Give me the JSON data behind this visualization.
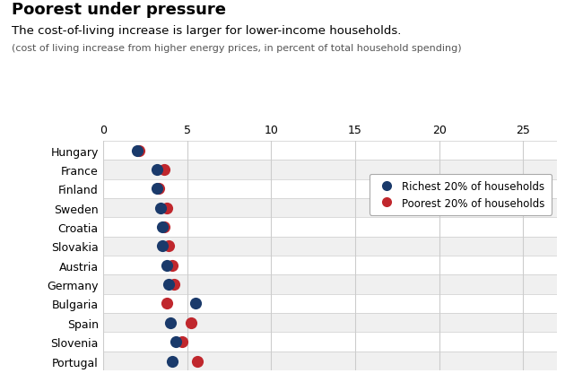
{
  "title": "Poorest under pressure",
  "subtitle": "The cost-of-living increase is larger for lower-income households.",
  "subtitle2": "(cost of living increase from higher energy prices, in percent of total household spending)",
  "countries": [
    "Hungary",
    "France",
    "Finland",
    "Sweden",
    "Croatia",
    "Slovakia",
    "Austria",
    "Germany",
    "Bulgaria",
    "Spain",
    "Slovenia",
    "Portugal"
  ],
  "richest": [
    2.0,
    3.2,
    3.2,
    3.4,
    3.5,
    3.5,
    3.8,
    3.9,
    5.5,
    4.0,
    4.3,
    4.1
  ],
  "poorest": [
    2.1,
    3.6,
    3.3,
    3.8,
    3.6,
    3.9,
    4.1,
    4.2,
    3.8,
    5.2,
    4.7,
    5.6
  ],
  "richest_color": "#1a3a6b",
  "poorest_color": "#c0272d",
  "xlim": [
    0,
    27
  ],
  "xticks": [
    0,
    5,
    10,
    15,
    20,
    25
  ],
  "bg_color": "#f0f0f0",
  "legend_richest": "Richest 20% of households",
  "legend_poorest": "Poorest 20% of households",
  "marker_size": 90,
  "grid_color": "#cccccc",
  "row_bg_white": "#ffffff",
  "row_bg_gray": "#f0f0f0"
}
